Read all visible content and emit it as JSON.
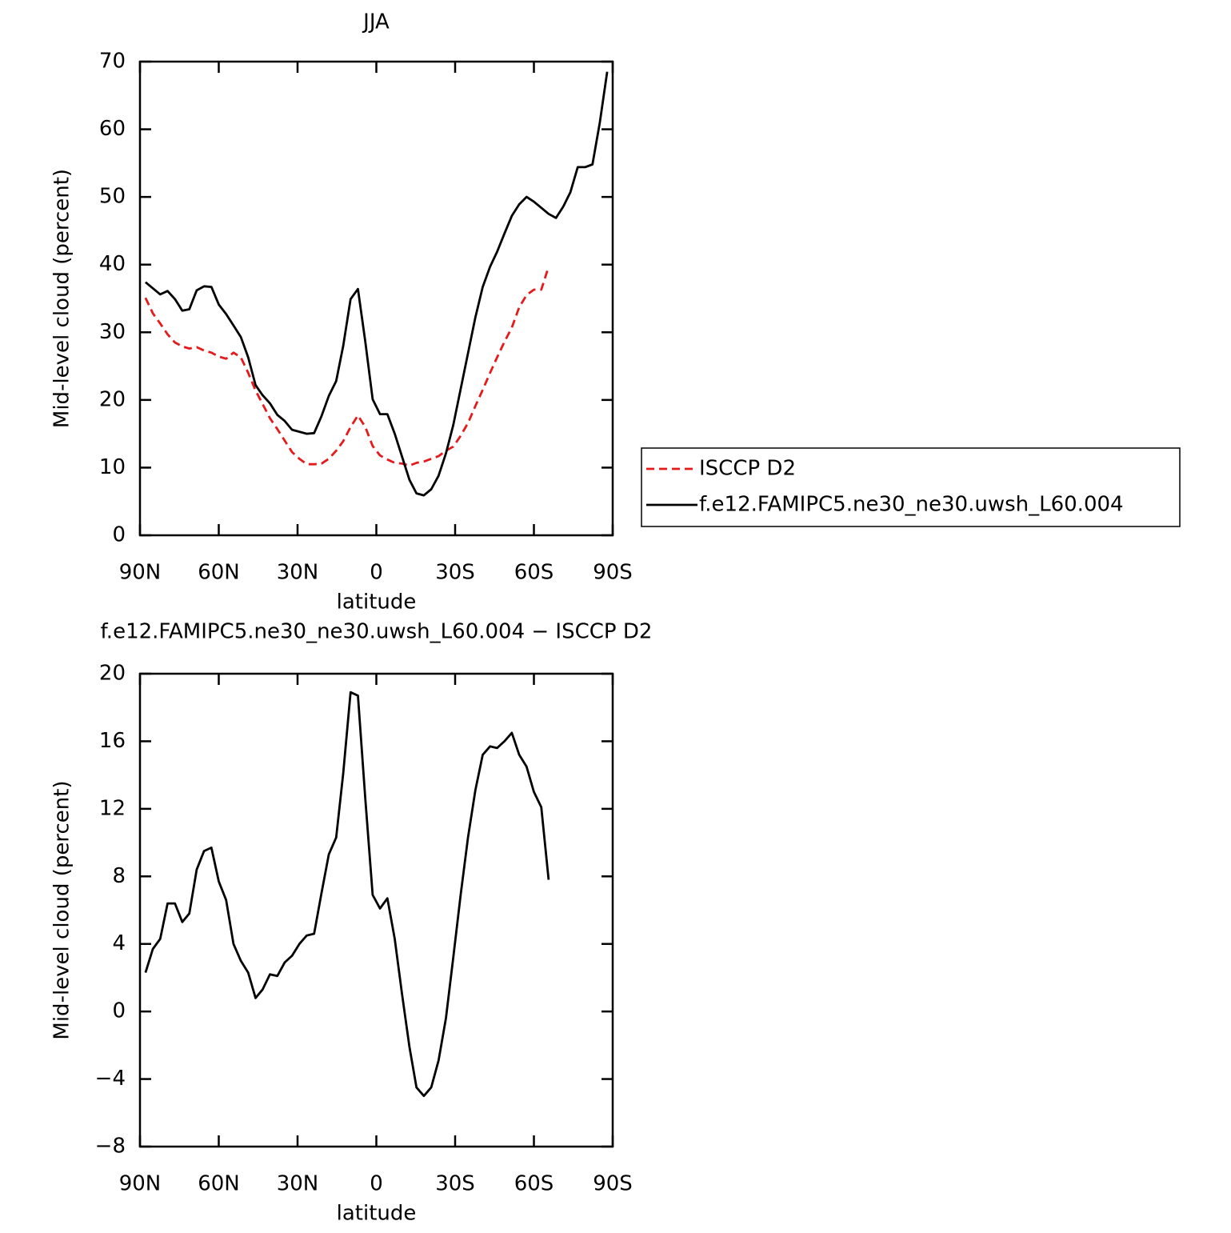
{
  "chart_data": [
    {
      "type": "line",
      "title": "JJA",
      "xlabel": "latitude",
      "ylabel": "Mid-level cloud (percent)",
      "x": [
        87.9,
        85.1,
        82.3,
        79.5,
        76.7,
        73.9,
        71.2,
        68.4,
        65.6,
        62.8,
        60.0,
        57.2,
        54.4,
        51.6,
        48.8,
        46.0,
        43.3,
        40.5,
        37.7,
        34.9,
        32.1,
        29.3,
        26.5,
        23.7,
        20.9,
        18.1,
        15.3,
        12.6,
        9.8,
        7.0,
        4.2,
        1.4,
        -1.4,
        -4.2,
        -7.0,
        -9.8,
        -12.6,
        -15.3,
        -18.1,
        -20.9,
        -23.7,
        -26.5,
        -29.3,
        -32.1,
        -34.9,
        -37.7,
        -40.5,
        -43.3,
        -46.0,
        -48.8,
        -51.6,
        -54.4,
        -57.2,
        -60.0,
        -62.8,
        -65.6,
        -68.4,
        -71.2,
        -73.9,
        -76.7,
        -79.5,
        -82.3,
        -85.1,
        -87.9
      ],
      "series": [
        {
          "name": "ISCCP D2",
          "color": "#e41a1c",
          "linestyle": "dashed",
          "values": [
            35.1,
            32.8,
            31.3,
            29.7,
            28.5,
            27.9,
            27.6,
            27.8,
            27.3,
            27.0,
            26.4,
            26.1,
            27.0,
            26.3,
            24.0,
            21.4,
            19.4,
            17.3,
            15.7,
            14.0,
            12.3,
            11.3,
            10.5,
            10.5,
            10.6,
            11.3,
            12.5,
            13.9,
            16.0,
            17.7,
            16.0,
            13.2,
            11.8,
            11.2,
            10.7,
            10.6,
            10.3,
            10.7,
            10.9,
            11.3,
            11.7,
            12.5,
            13.1,
            14.7,
            16.6,
            19.1,
            21.5,
            24.0,
            26.3,
            28.6,
            30.7,
            33.7,
            35.5,
            36.3,
            36.3,
            39.7,
            null,
            null,
            null,
            null,
            null,
            null,
            null,
            null
          ]
        },
        {
          "name": "f.e12.FAMIPC5.ne30_ne30.uwsh_L60.004",
          "color": "#000000",
          "linestyle": "solid",
          "values": [
            37.4,
            36.5,
            35.6,
            36.1,
            34.9,
            33.2,
            33.4,
            36.2,
            36.8,
            36.7,
            34.1,
            32.7,
            31.0,
            29.3,
            26.3,
            22.2,
            20.7,
            19.5,
            17.8,
            16.9,
            15.6,
            15.3,
            15.0,
            15.1,
            17.6,
            20.6,
            22.8,
            28.0,
            34.9,
            36.4,
            28.6,
            20.1,
            17.9,
            17.9,
            15.0,
            11.6,
            8.2,
            6.2,
            5.9,
            6.8,
            8.8,
            12.1,
            16.3,
            21.6,
            26.9,
            32.2,
            36.7,
            39.7,
            41.9,
            44.6,
            47.2,
            48.9,
            50.0,
            49.3,
            48.4,
            47.5,
            46.9,
            48.6,
            50.7,
            54.4,
            54.4,
            54.8,
            61.0,
            68.5
          ]
        }
      ],
      "xlim": [
        90,
        -90
      ],
      "ylim": [
        0,
        70
      ],
      "xticks": [
        {
          "value": 90,
          "label": "90N"
        },
        {
          "value": 60,
          "label": "60N"
        },
        {
          "value": 30,
          "label": "30N"
        },
        0,
        {
          "value": -30,
          "label": "30S"
        },
        {
          "value": -60,
          "label": "60S"
        },
        {
          "value": -90,
          "label": "90S"
        }
      ],
      "yticks": [
        0,
        10,
        20,
        30,
        40,
        50,
        60,
        70
      ],
      "legend": "outside-right"
    },
    {
      "type": "line",
      "title": "f.e12.FAMIPC5.ne30_ne30.uwsh_L60.004 − ISCCP D2",
      "xlabel": "latitude",
      "ylabel": "Mid-level cloud (percent)",
      "x": [
        87.9,
        85.1,
        82.3,
        79.5,
        76.7,
        73.9,
        71.2,
        68.4,
        65.6,
        62.8,
        60.0,
        57.2,
        54.4,
        51.6,
        48.8,
        46.0,
        43.3,
        40.5,
        37.7,
        34.9,
        32.1,
        29.3,
        26.5,
        23.7,
        20.9,
        18.1,
        15.3,
        12.6,
        9.8,
        7.0,
        4.2,
        1.4,
        -1.4,
        -4.2,
        -7.0,
        -9.8,
        -12.6,
        -15.3,
        -18.1,
        -20.9,
        -23.7,
        -26.5,
        -29.3,
        -32.1,
        -34.9,
        -37.7,
        -40.5,
        -43.3,
        -46.0,
        -48.8,
        -51.6,
        -54.4,
        -57.2,
        -60.0,
        -62.8,
        -65.6,
        -68.4,
        -71.2,
        -73.9,
        -76.7,
        -79.5,
        -82.3,
        -85.1,
        -87.9
      ],
      "color": "#000000",
      "values": [
        2.3,
        3.7,
        4.3,
        6.4,
        6.4,
        5.3,
        5.8,
        8.4,
        9.5,
        9.7,
        7.7,
        6.6,
        4.0,
        3.0,
        2.3,
        0.8,
        1.3,
        2.2,
        2.1,
        2.9,
        3.3,
        4.0,
        4.5,
        4.6,
        7.0,
        9.3,
        10.3,
        14.1,
        18.9,
        18.7,
        12.6,
        6.9,
        6.1,
        6.7,
        4.3,
        1.0,
        -2.1,
        -4.5,
        -5.0,
        -4.5,
        -2.9,
        -0.4,
        3.2,
        6.9,
        10.3,
        13.1,
        15.2,
        15.7,
        15.6,
        16.0,
        16.5,
        15.2,
        14.5,
        13.0,
        12.1,
        7.8,
        null,
        null,
        null,
        null,
        null,
        null,
        null,
        null
      ],
      "xlim": [
        90,
        -90
      ],
      "ylim": [
        -8,
        20
      ],
      "xticks": [
        {
          "value": 90,
          "label": "90N"
        },
        {
          "value": 60,
          "label": "60N"
        },
        {
          "value": 30,
          "label": "30N"
        },
        0,
        {
          "value": -30,
          "label": "30S"
        },
        {
          "value": -60,
          "label": "60S"
        },
        {
          "value": -90,
          "label": "90S"
        }
      ],
      "yticks": [
        {
          "value": -8,
          "label": "−8"
        },
        {
          "value": -4,
          "label": "−4"
        },
        0,
        4,
        8,
        12,
        16,
        20
      ]
    }
  ]
}
